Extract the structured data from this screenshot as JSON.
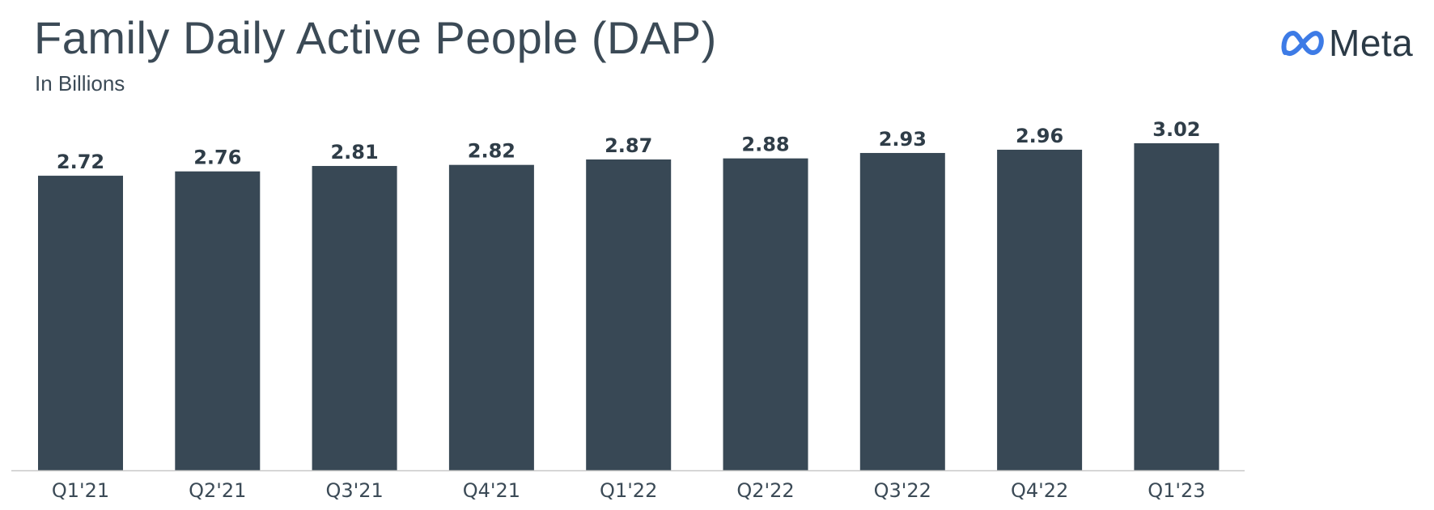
{
  "header": {
    "title": "Family Daily Active People (DAP)",
    "subtitle": "In Billions"
  },
  "brand": {
    "logo_text": "Meta",
    "logo_icon": "meta-infinity-icon",
    "logo_color": "#3d7be6"
  },
  "chart_data": {
    "type": "bar",
    "title": "Family Daily Active People (DAP)",
    "subtitle": "In Billions",
    "categories": [
      "Q1'21",
      "Q2'21",
      "Q3'21",
      "Q4'21",
      "Q1'22",
      "Q2'22",
      "Q3'22",
      "Q4'22",
      "Q1'23"
    ],
    "values": [
      2.72,
      2.76,
      2.81,
      2.82,
      2.87,
      2.88,
      2.93,
      2.96,
      3.02
    ],
    "data_labels": [
      "2.72",
      "2.76",
      "2.81",
      "2.82",
      "2.87",
      "2.88",
      "2.93",
      "2.96",
      "3.02"
    ],
    "ylim": [
      0,
      3.02
    ],
    "grid": false,
    "bar_color": "#384855",
    "axis_color": "#c8c8c8"
  }
}
